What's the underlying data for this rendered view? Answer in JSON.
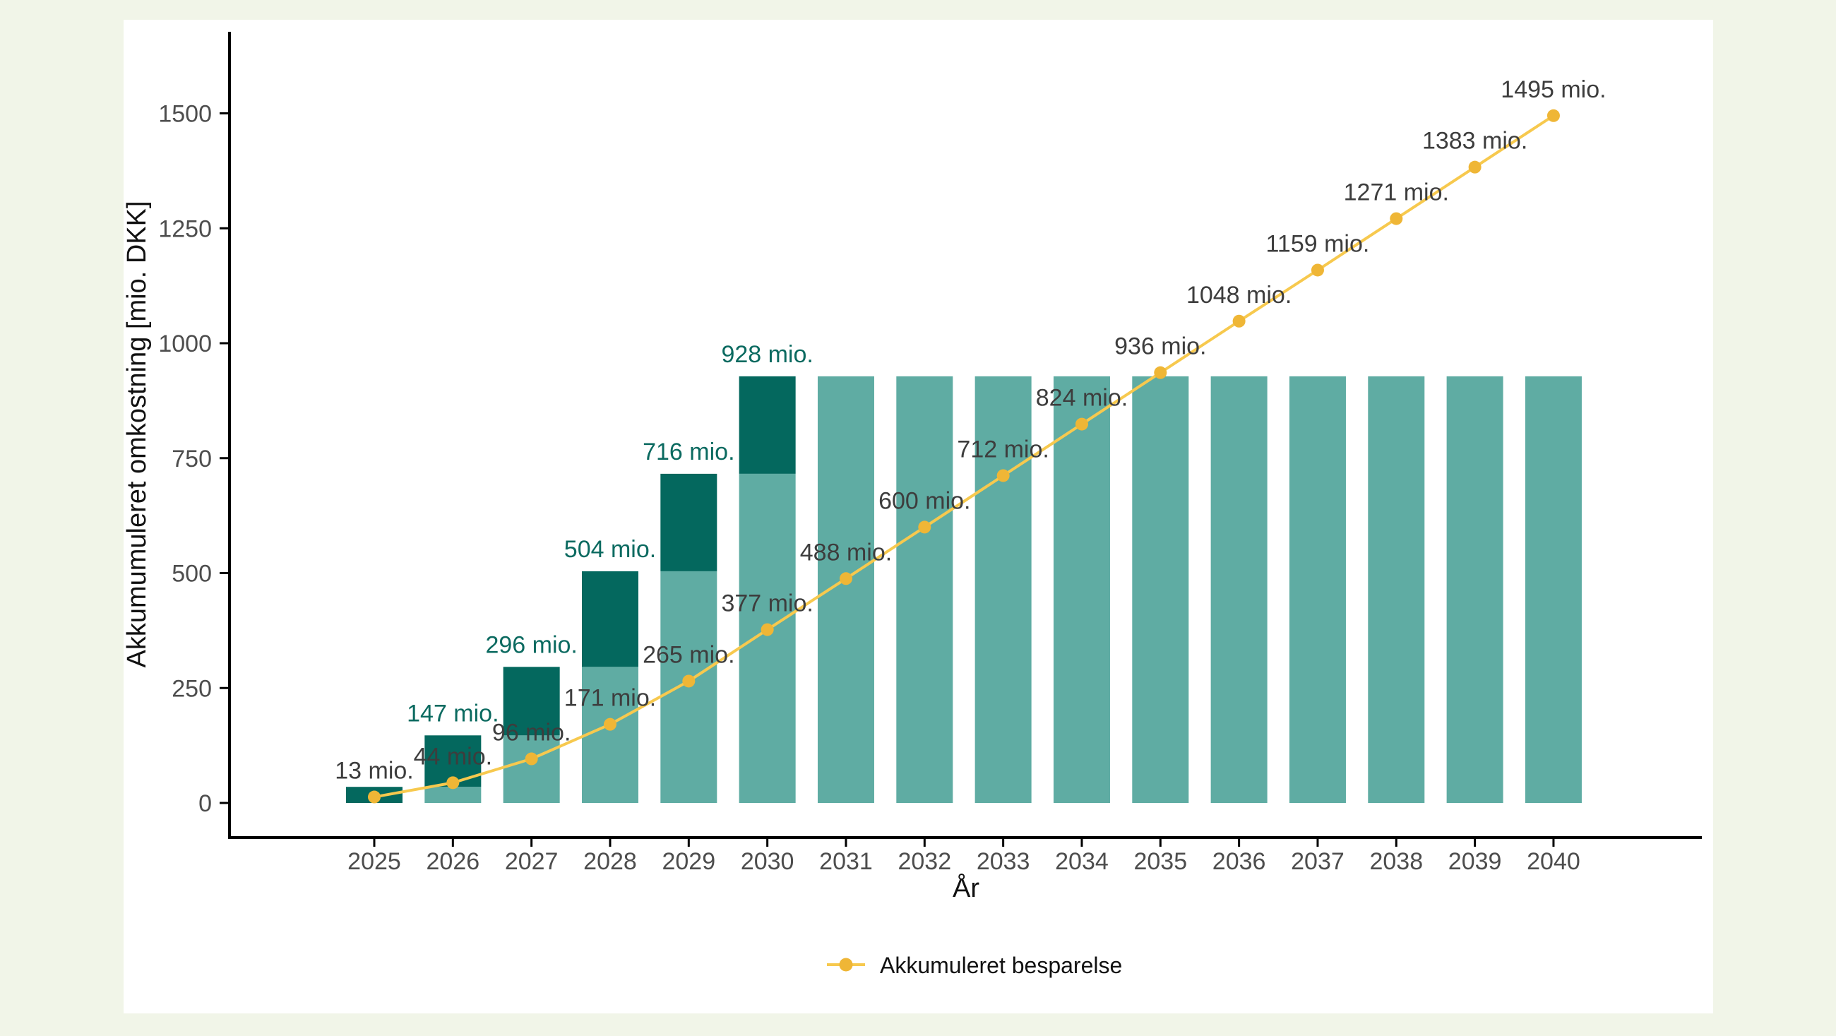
{
  "page": {
    "background_color": "#f1f5e8",
    "panel_color": "#ffffff"
  },
  "chart_data": {
    "type": "bar+line",
    "title": "",
    "xlabel": "År",
    "ylabel": "Akkumumuleret omkostning [mio. DKK]",
    "ylim": [
      0,
      1500
    ],
    "yticks": [
      0,
      250,
      500,
      750,
      1000,
      1250,
      1500
    ],
    "ytick_labels": [
      "0",
      "250",
      "500",
      "750",
      "1000",
      "1250",
      "1500"
    ],
    "grid": "off",
    "legend_position": "bottom",
    "categories": [
      "2025",
      "2026",
      "2027",
      "2028",
      "2029",
      "2030",
      "2031",
      "2032",
      "2033",
      "2034",
      "2035",
      "2036",
      "2037",
      "2038",
      "2039",
      "2040"
    ],
    "bars": {
      "name": "Akkumumuleret omkostning",
      "stacking": "light segment = cumulative cost of previous year, dark segment = increment of the year",
      "totals": [
        35,
        147,
        296,
        504,
        716,
        928,
        928,
        928,
        928,
        928,
        928,
        928,
        928,
        928,
        928,
        928
      ],
      "segment_boundaries": [
        0,
        35,
        147,
        296,
        504,
        716,
        928,
        928,
        928,
        928,
        928,
        928,
        928,
        928,
        928,
        928
      ],
      "labels": [
        "",
        "147 mio.",
        "296 mio.",
        "504 mio.",
        "716 mio.",
        "928 mio.",
        "",
        "",
        "",
        "",
        "",
        "",
        "",
        "",
        "",
        ""
      ]
    },
    "line": {
      "name": "Akkumuleret besparelse",
      "values": [
        13,
        44,
        96,
        171,
        265,
        377,
        488,
        600,
        712,
        824,
        936,
        1048,
        1159,
        1271,
        1383,
        1495
      ],
      "labels": [
        "13 mio.",
        "44 mio.",
        "96 mio.",
        "171 mio.",
        "265 mio.",
        "377 mio.",
        "488 mio.",
        "600 mio.",
        "712 mio.",
        "824 mio.",
        "936 mio.",
        "1048 mio.",
        "1159 mio.",
        "1271 mio.",
        "1383 mio.",
        "1495 mio."
      ]
    },
    "legend": {
      "entries": [
        {
          "label": "Akkumuleret besparelse",
          "glyph": "line-with-point"
        }
      ]
    },
    "colors": {
      "bar_light": "#5faca3",
      "bar_dark": "#04685e",
      "line": "#f7c94e",
      "point": "#efb636",
      "bar_label_text": "#0b6a60",
      "line_label_text": "#3d3d3d",
      "axis_tick_text": "#4d4d4d",
      "axis_line": "#000000"
    }
  }
}
